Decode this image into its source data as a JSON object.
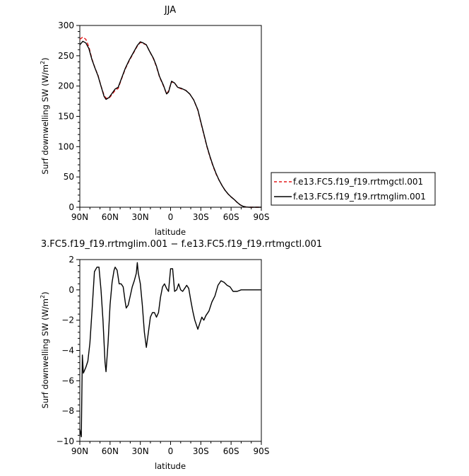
{
  "chart_data": [
    {
      "type": "line",
      "title": "JJA",
      "xlabel": "latitude",
      "ylabel": "Surf downwelling SW (W/m²)",
      "ylabel_main": "Surf downwelling SW (W/m",
      "ylabel_sup": "2",
      "ylabel_end": ")",
      "xlim": [
        90,
        -90
      ],
      "ylim": [
        0,
        300
      ],
      "x_ticks": [
        90,
        60,
        30,
        0,
        -30,
        -60,
        -90
      ],
      "x_tick_labels": [
        "90N",
        "60N",
        "30N",
        "0",
        "30S",
        "60S",
        "90S"
      ],
      "y_ticks": [
        0,
        50,
        100,
        150,
        200,
        250,
        300
      ],
      "y_tick_labels": [
        "0",
        "50",
        "100",
        "150",
        "200",
        "250",
        "300"
      ],
      "legend_position": "right",
      "series": [
        {
          "name": "f.e13.FC5.f19_f19.rrtmgctl.001",
          "color": "#e41a1c",
          "dash": "dashed",
          "points": [
            [
              90,
              277
            ],
            [
              87,
              281
            ],
            [
              84,
              277
            ],
            [
              81,
              265
            ],
            [
              78,
              245
            ],
            [
              75,
              230
            ],
            [
              72,
              218
            ],
            [
              69,
              200
            ],
            [
              66,
              185
            ],
            [
              64,
              180
            ],
            [
              61,
              180
            ],
            [
              58,
              186
            ],
            [
              55,
              193
            ],
            [
              52,
              196
            ],
            [
              49,
              210
            ],
            [
              45,
              228
            ],
            [
              41,
              242
            ],
            [
              37,
              254
            ],
            [
              33,
              266
            ],
            [
              30,
              272
            ],
            [
              27,
              270
            ],
            [
              24,
              268
            ],
            [
              21,
              258
            ],
            [
              17,
              245
            ],
            [
              14,
              232
            ],
            [
              11,
              215
            ],
            [
              7,
              200
            ],
            [
              4,
              187
            ],
            [
              2,
              192
            ],
            [
              -1,
              207
            ],
            [
              -4,
              205
            ],
            [
              -7,
              198
            ],
            [
              -11,
              195
            ],
            [
              -15,
              193
            ],
            [
              -19,
              187
            ],
            [
              -23,
              177
            ],
            [
              -27,
              160
            ],
            [
              -30,
              140
            ],
            [
              -33,
              120
            ],
            [
              -36,
              100
            ],
            [
              -39,
              83
            ],
            [
              -42,
              68
            ],
            [
              -45,
              55
            ],
            [
              -48,
              45
            ],
            [
              -51,
              36
            ],
            [
              -54,
              28
            ],
            [
              -57,
              22
            ],
            [
              -60,
              17
            ],
            [
              -63,
              13
            ],
            [
              -66,
              8
            ],
            [
              -69,
              4
            ],
            [
              -72,
              1.5
            ],
            [
              -75,
              0.3
            ],
            [
              -78,
              0
            ],
            [
              -84,
              0
            ],
            [
              -90,
              0
            ]
          ]
        },
        {
          "name": "f.e13.FC5.f19_f19.rrtmglim.001",
          "color": "#000000",
          "dash": "solid",
          "points": [
            [
              90,
              268
            ],
            [
              87,
              274
            ],
            [
              84,
              271
            ],
            [
              81,
              262
            ],
            [
              78,
              244
            ],
            [
              75,
              230
            ],
            [
              72,
              217
            ],
            [
              69,
              200
            ],
            [
              66,
              183
            ],
            [
              64,
              178
            ],
            [
              61,
              181
            ],
            [
              58,
              188
            ],
            [
              55,
              195
            ],
            [
              52,
              198
            ],
            [
              49,
              211
            ],
            [
              45,
              229
            ],
            [
              41,
              243
            ],
            [
              37,
              255
            ],
            [
              33,
              267
            ],
            [
              30,
              273
            ],
            [
              27,
              271
            ],
            [
              24,
              268
            ],
            [
              21,
              258
            ],
            [
              17,
              246
            ],
            [
              14,
              233
            ],
            [
              11,
              216
            ],
            [
              7,
              201
            ],
            [
              4,
              187
            ],
            [
              2,
              190
            ],
            [
              -1,
              208
            ],
            [
              -4,
              205
            ],
            [
              -7,
              198
            ],
            [
              -11,
              196
            ],
            [
              -15,
              193
            ],
            [
              -19,
              187
            ],
            [
              -23,
              177
            ],
            [
              -27,
              161
            ],
            [
              -30,
              141
            ],
            [
              -33,
              121
            ],
            [
              -36,
              101
            ],
            [
              -39,
              84
            ],
            [
              -42,
              69
            ],
            [
              -45,
              56
            ],
            [
              -48,
              45
            ],
            [
              -51,
              36
            ],
            [
              -54,
              28
            ],
            [
              -57,
              22
            ],
            [
              -60,
              17
            ],
            [
              -63,
              13
            ],
            [
              -66,
              8
            ],
            [
              -69,
              4
            ],
            [
              -72,
              1.5
            ],
            [
              -75,
              0.3
            ],
            [
              -78,
              0
            ],
            [
              -84,
              0
            ],
            [
              -90,
              0
            ]
          ]
        }
      ]
    },
    {
      "type": "line",
      "title": "3.FC5.f19_f19.rrtmglim.001 − f.e13.FC5.f19_f19.rrtmgctl.001",
      "xlabel": "latitude",
      "ylabel": "Surf downwelling SW (W/m²)",
      "ylabel_main": "Surf downwelling SW (W/m",
      "ylabel_sup": "2",
      "ylabel_end": ")",
      "xlim": [
        90,
        -90
      ],
      "ylim": [
        -10,
        2
      ],
      "x_ticks": [
        90,
        60,
        30,
        0,
        -30,
        -60,
        -90
      ],
      "x_tick_labels": [
        "90N",
        "60N",
        "30N",
        "0",
        "30S",
        "60S",
        "90S"
      ],
      "y_ticks": [
        -10,
        -8,
        -6,
        -4,
        -2,
        0,
        2
      ],
      "y_tick_labels": [
        "−10",
        "−8",
        "−6",
        "−4",
        "−2",
        "0",
        "2"
      ],
      "series": [
        {
          "color": "#000000",
          "dash": "solid",
          "points": [
            [
              90,
              -9.2
            ],
            [
              88.5,
              -9.7
            ],
            [
              87.5,
              -4.3
            ],
            [
              86.5,
              -5.5
            ],
            [
              84,
              -5.1
            ],
            [
              82,
              -4.7
            ],
            [
              80,
              -3.5
            ],
            [
              77.5,
              -1
            ],
            [
              75.5,
              1.2
            ],
            [
              73,
              1.5
            ],
            [
              71,
              1.5
            ],
            [
              69,
              0
            ],
            [
              67,
              -2
            ],
            [
              65,
              -4.8
            ],
            [
              64,
              -5.4
            ],
            [
              62,
              -3.5
            ],
            [
              60,
              -1
            ],
            [
              58,
              0.5
            ],
            [
              56,
              1.3
            ],
            [
              55,
              1.5
            ],
            [
              53,
              1.3
            ],
            [
              51,
              0.4
            ],
            [
              49,
              0.4
            ],
            [
              47,
              0.2
            ],
            [
              45,
              -0.8
            ],
            [
              44,
              -1.2
            ],
            [
              42,
              -1
            ],
            [
              40,
              -0.4
            ],
            [
              38,
              0.2
            ],
            [
              36,
              0.6
            ],
            [
              34,
              1.1
            ],
            [
              33,
              1.8
            ],
            [
              32,
              1.1
            ],
            [
              30,
              0.4
            ],
            [
              28,
              -1
            ],
            [
              26,
              -2.8
            ],
            [
              24,
              -3.8
            ],
            [
              22,
              -2.8
            ],
            [
              20,
              -1.8
            ],
            [
              18,
              -1.5
            ],
            [
              16,
              -1.5
            ],
            [
              14,
              -1.8
            ],
            [
              12,
              -1.5
            ],
            [
              10,
              -0.5
            ],
            [
              8,
              0.2
            ],
            [
              6,
              0.4
            ],
            [
              4,
              0.1
            ],
            [
              2,
              -0.1
            ],
            [
              0,
              1.4
            ],
            [
              -2,
              1.4
            ],
            [
              -4,
              -0.1
            ],
            [
              -6,
              0
            ],
            [
              -8,
              0.4
            ],
            [
              -10,
              0
            ],
            [
              -12,
              -0.1
            ],
            [
              -14,
              0.1
            ],
            [
              -16,
              0.3
            ],
            [
              -18,
              0.1
            ],
            [
              -20,
              -0.7
            ],
            [
              -22,
              -1.4
            ],
            [
              -24,
              -2.0
            ],
            [
              -27,
              -2.6
            ],
            [
              -29,
              -2.2
            ],
            [
              -31,
              -1.8
            ],
            [
              -33,
              -2.0
            ],
            [
              -35,
              -1.7
            ],
            [
              -38,
              -1.4
            ],
            [
              -41,
              -0.8
            ],
            [
              -44,
              -0.4
            ],
            [
              -47,
              0.3
            ],
            [
              -50,
              0.6
            ],
            [
              -53,
              0.5
            ],
            [
              -56,
              0.3
            ],
            [
              -59,
              0.2
            ],
            [
              -62,
              -0.1
            ],
            [
              -66,
              -0.1
            ],
            [
              -70,
              0
            ],
            [
              -75,
              0
            ],
            [
              -80,
              0
            ],
            [
              -85,
              0
            ],
            [
              -90,
              0
            ]
          ]
        }
      ]
    }
  ]
}
